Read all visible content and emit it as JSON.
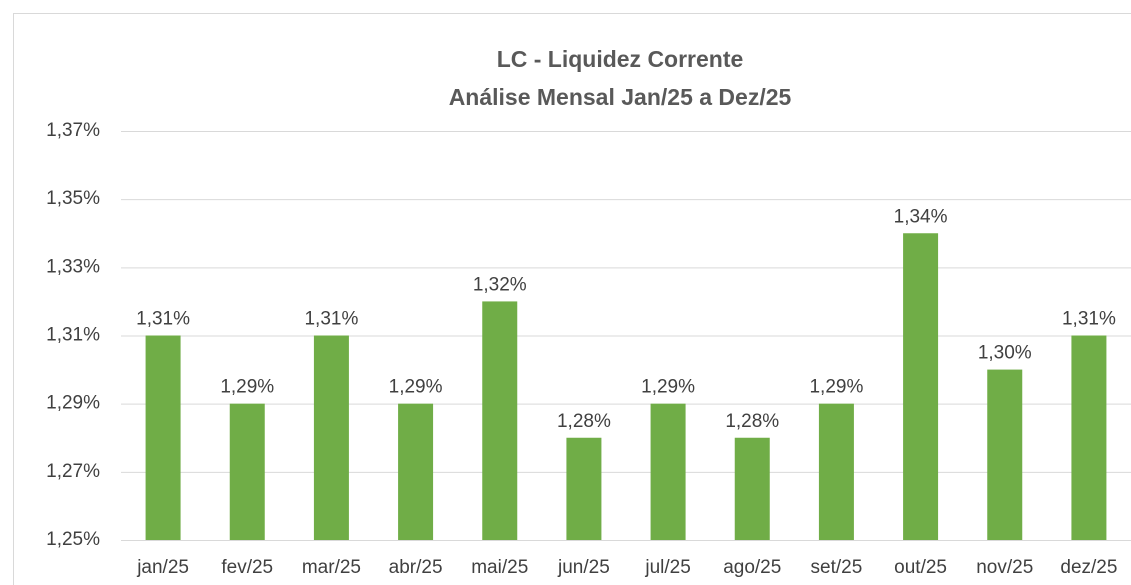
{
  "chart_data": {
    "type": "bar",
    "title": "LC - Liquidez Corrente",
    "subtitle": "Análise Mensal Jan/25 a Dez/25",
    "categories": [
      "jan/25",
      "fev/25",
      "mar/25",
      "abr/25",
      "mai/25",
      "jun/25",
      "jul/25",
      "ago/25",
      "set/25",
      "out/25",
      "nov/25",
      "dez/25"
    ],
    "values": [
      1.31,
      1.29,
      1.31,
      1.29,
      1.32,
      1.28,
      1.29,
      1.28,
      1.29,
      1.34,
      1.3,
      1.31
    ],
    "value_labels": [
      "1,31%",
      "1,29%",
      "1,31%",
      "1,29%",
      "1,32%",
      "1,28%",
      "1,29%",
      "1,28%",
      "1,29%",
      "1,34%",
      "1,30%",
      "1,31%"
    ],
    "color": "#70ad47",
    "ylim": [
      1.25,
      1.37
    ],
    "yticks": [
      {
        "value": 1.25,
        "label": "1,25%"
      },
      {
        "value": 1.27,
        "label": "1,27%"
      },
      {
        "value": 1.29,
        "label": "1,29%"
      },
      {
        "value": 1.31,
        "label": "1,31%"
      },
      {
        "value": 1.33,
        "label": "1,33%"
      },
      {
        "value": 1.35,
        "label": "1,35%"
      },
      {
        "value": 1.37,
        "label": "1,37%"
      }
    ],
    "grid": true
  }
}
